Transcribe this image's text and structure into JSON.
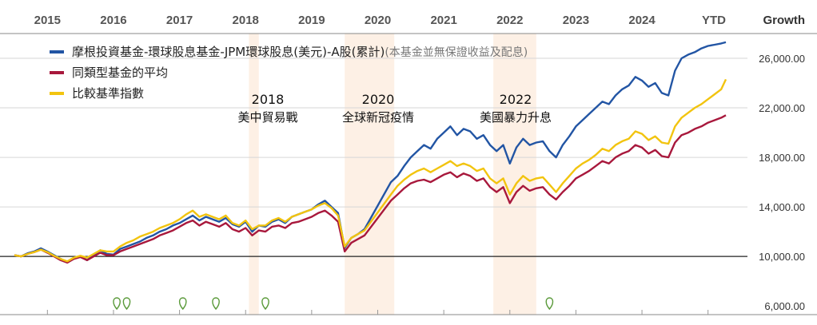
{
  "chart_data": {
    "type": "line",
    "x_ticks": [
      "2015",
      "2016",
      "2017",
      "2018",
      "2019",
      "2020",
      "2021",
      "2022",
      "2023",
      "2024",
      "YTD"
    ],
    "y_axis_title": "Growth",
    "y_ticks": [
      "26,000.00",
      "22,000.00",
      "18,000.00",
      "14,000.00",
      "10,000.00",
      "6,000.00"
    ],
    "y_tick_values": [
      26000,
      22000,
      18000,
      14000,
      10000,
      6000
    ],
    "ylim": [
      5300,
      28000
    ],
    "xlim": [
      2014.5,
      2025.3
    ],
    "baseline": 10000,
    "grid": "horizontal",
    "legend_position": "top-left",
    "legend_note": "(本基金並無保證收益及配息)",
    "series": [
      {
        "name": "摩根投資基金-環球股息基金-JPM環球股息(美元)-A股(累計)",
        "color": "#2255a4",
        "x": [
          2014.5,
          2014.6,
          2014.7,
          2014.8,
          2014.9,
          2015.0,
          2015.1,
          2015.2,
          2015.3,
          2015.4,
          2015.5,
          2015.6,
          2015.7,
          2015.8,
          2015.9,
          2016.0,
          2016.1,
          2016.2,
          2016.3,
          2016.4,
          2016.5,
          2016.6,
          2016.7,
          2016.8,
          2016.9,
          2017.0,
          2017.1,
          2017.2,
          2017.3,
          2017.4,
          2017.5,
          2017.6,
          2017.7,
          2017.8,
          2017.9,
          2018.0,
          2018.1,
          2018.2,
          2018.3,
          2018.4,
          2018.5,
          2018.6,
          2018.7,
          2018.8,
          2018.9,
          2019.0,
          2019.1,
          2019.2,
          2019.3,
          2019.4,
          2019.5,
          2019.6,
          2019.7,
          2019.8,
          2019.9,
          2020.0,
          2020.1,
          2020.2,
          2020.3,
          2020.4,
          2020.5,
          2020.6,
          2020.7,
          2020.8,
          2020.9,
          2021.0,
          2021.1,
          2021.2,
          2021.3,
          2021.4,
          2021.5,
          2021.6,
          2021.7,
          2021.8,
          2021.9,
          2022.0,
          2022.1,
          2022.2,
          2022.3,
          2022.4,
          2022.5,
          2022.6,
          2022.7,
          2022.8,
          2022.9,
          2023.0,
          2023.1,
          2023.2,
          2023.3,
          2023.4,
          2023.5,
          2023.6,
          2023.7,
          2023.8,
          2023.9,
          2024.0,
          2024.1,
          2024.2,
          2024.3,
          2024.4,
          2024.5,
          2024.6,
          2024.7,
          2024.8,
          2024.9,
          2025.0,
          2025.1,
          2025.2,
          2025.27
        ],
        "values": [
          10100,
          10000,
          10250,
          10400,
          10650,
          10400,
          10100,
          9800,
          9550,
          9900,
          10000,
          9700,
          10100,
          10500,
          10200,
          10150,
          10600,
          10800,
          11000,
          11200,
          11500,
          11700,
          12000,
          12200,
          12500,
          12700,
          13000,
          13300,
          12900,
          13200,
          13000,
          12800,
          13100,
          12600,
          12400,
          12800,
          12000,
          12500,
          12400,
          12800,
          13000,
          12700,
          13200,
          13400,
          13600,
          13800,
          14200,
          14500,
          14000,
          13500,
          10700,
          11500,
          11800,
          12200,
          12400,
          13200,
          14800,
          16000,
          16500,
          17300,
          18000,
          18500,
          19000,
          18700,
          19500,
          20000,
          20500,
          19800,
          20300,
          20100,
          19500,
          19800,
          19000,
          18500,
          19000,
          17500,
          18800,
          19500,
          19000,
          19200,
          19300,
          18500,
          18000,
          19000,
          19700,
          20500,
          21000,
          21500,
          22000,
          22500,
          22300,
          23000,
          23500,
          23800,
          24500,
          24200,
          23700,
          24000,
          23200,
          23000,
          25000,
          26000,
          26300,
          26500,
          26800,
          27000,
          27100,
          27200,
          27300
        ],
        "gap": {
          "from": 2019.85,
          "to": 2020.15
        }
      },
      {
        "name": "同類型基金的平均",
        "color": "#a8183c",
        "x": [
          2014.5,
          2014.6,
          2014.7,
          2014.8,
          2014.9,
          2015.0,
          2015.1,
          2015.2,
          2015.3,
          2015.4,
          2015.5,
          2015.6,
          2015.7,
          2015.8,
          2015.9,
          2016.0,
          2016.1,
          2016.2,
          2016.3,
          2016.4,
          2016.5,
          2016.6,
          2016.7,
          2016.8,
          2016.9,
          2017.0,
          2017.1,
          2017.2,
          2017.3,
          2017.4,
          2017.5,
          2017.6,
          2017.7,
          2017.8,
          2017.9,
          2018.0,
          2018.1,
          2018.2,
          2018.3,
          2018.4,
          2018.5,
          2018.6,
          2018.7,
          2018.8,
          2018.9,
          2019.0,
          2019.1,
          2019.2,
          2019.3,
          2019.4,
          2019.5,
          2019.6,
          2019.7,
          2019.8,
          2019.9,
          2020.0,
          2020.1,
          2020.2,
          2020.3,
          2020.4,
          2020.5,
          2020.6,
          2020.7,
          2020.8,
          2020.9,
          2021.0,
          2021.1,
          2021.2,
          2021.3,
          2021.4,
          2021.5,
          2021.6,
          2021.7,
          2021.8,
          2021.9,
          2022.0,
          2022.1,
          2022.2,
          2022.3,
          2022.4,
          2022.5,
          2022.6,
          2022.7,
          2022.8,
          2022.9,
          2023.0,
          2023.1,
          2023.2,
          2023.3,
          2023.4,
          2023.5,
          2023.6,
          2023.7,
          2023.8,
          2023.9,
          2024.0,
          2024.1,
          2024.2,
          2024.3,
          2024.4,
          2024.5,
          2024.6,
          2024.7,
          2024.8,
          2024.9,
          2025.0,
          2025.1,
          2025.2,
          2025.27
        ],
        "values": [
          10100,
          10000,
          10200,
          10350,
          10550,
          10300,
          10000,
          9700,
          9500,
          9800,
          9950,
          9700,
          10000,
          10300,
          10100,
          10100,
          10400,
          10600,
          10800,
          11000,
          11200,
          11400,
          11700,
          11900,
          12100,
          12400,
          12700,
          12900,
          12500,
          12800,
          12600,
          12400,
          12700,
          12200,
          12000,
          12300,
          11700,
          12100,
          12000,
          12400,
          12500,
          12300,
          12700,
          12800,
          13000,
          13200,
          13500,
          13700,
          13300,
          12800,
          10400,
          11100,
          11400,
          11700,
          11900,
          12600,
          13600,
          14500,
          15000,
          15500,
          15900,
          16100,
          16200,
          16000,
          16300,
          16600,
          16800,
          16400,
          16700,
          16500,
          16100,
          16300,
          15600,
          15200,
          15600,
          14300,
          15200,
          15700,
          15300,
          15500,
          15600,
          15000,
          14600,
          15200,
          15700,
          16300,
          16600,
          16900,
          17300,
          17700,
          17500,
          18000,
          18300,
          18500,
          19000,
          18800,
          18300,
          18600,
          18100,
          18000,
          19200,
          19800,
          20000,
          20300,
          20500,
          20800,
          21000,
          21200,
          21400
        ],
        "gap": {
          "from": 2019.85,
          "to": 2020.15
        }
      },
      {
        "name": "比較基準指數",
        "color": "#f2c40f",
        "x": [
          2014.5,
          2014.6,
          2014.7,
          2014.8,
          2014.9,
          2015.0,
          2015.1,
          2015.2,
          2015.3,
          2015.4,
          2015.5,
          2015.6,
          2015.7,
          2015.8,
          2015.9,
          2016.0,
          2016.1,
          2016.2,
          2016.3,
          2016.4,
          2016.5,
          2016.6,
          2016.7,
          2016.8,
          2016.9,
          2017.0,
          2017.1,
          2017.2,
          2017.3,
          2017.4,
          2017.5,
          2017.6,
          2017.7,
          2017.8,
          2017.9,
          2018.0,
          2018.1,
          2018.2,
          2018.3,
          2018.4,
          2018.5,
          2018.6,
          2018.7,
          2018.8,
          2018.9,
          2019.0,
          2019.1,
          2019.2,
          2019.3,
          2019.4,
          2019.5,
          2019.6,
          2019.7,
          2019.8,
          2019.9,
          2020.0,
          2020.1,
          2020.2,
          2020.3,
          2020.4,
          2020.5,
          2020.6,
          2020.7,
          2020.8,
          2020.9,
          2021.0,
          2021.1,
          2021.2,
          2021.3,
          2021.4,
          2021.5,
          2021.6,
          2021.7,
          2021.8,
          2021.9,
          2022.0,
          2022.1,
          2022.2,
          2022.3,
          2022.4,
          2022.5,
          2022.6,
          2022.7,
          2022.8,
          2022.9,
          2023.0,
          2023.1,
          2023.2,
          2023.3,
          2023.4,
          2023.5,
          2023.6,
          2023.7,
          2023.8,
          2023.9,
          2024.0,
          2024.1,
          2024.2,
          2024.3,
          2024.4,
          2024.5,
          2024.6,
          2024.7,
          2024.8,
          2024.9,
          2025.0,
          2025.1,
          2025.2,
          2025.27
        ],
        "values": [
          10100,
          10000,
          10200,
          10350,
          10550,
          10350,
          10050,
          9800,
          9600,
          9900,
          10050,
          9900,
          10200,
          10500,
          10400,
          10400,
          10800,
          11100,
          11300,
          11600,
          11800,
          12000,
          12300,
          12500,
          12700,
          13000,
          13400,
          13700,
          13200,
          13400,
          13200,
          13000,
          13300,
          12700,
          12500,
          12900,
          12200,
          12500,
          12500,
          12900,
          13100,
          12800,
          13200,
          13400,
          13600,
          13800,
          14100,
          14300,
          13900,
          13300,
          10800,
          11500,
          11800,
          12100,
          12300,
          13200,
          14000,
          15000,
          15700,
          16200,
          16600,
          16900,
          17100,
          16800,
          17100,
          17400,
          17700,
          17300,
          17500,
          17300,
          16900,
          17100,
          16300,
          15900,
          16300,
          15000,
          15900,
          16500,
          16100,
          16300,
          16400,
          15800,
          15200,
          15900,
          16500,
          17100,
          17500,
          17800,
          18200,
          18700,
          18500,
          19000,
          19300,
          19500,
          20100,
          19900,
          19400,
          19700,
          19200,
          19100,
          20500,
          21200,
          21600,
          22000,
          22300,
          22700,
          23100,
          23500,
          24300
        ],
        "gap": {
          "from": 2019.85,
          "to": 2020.15
        }
      }
    ],
    "events": [
      {
        "year": "2018",
        "label": "美中貿易戰",
        "from": 2018.05,
        "to": 2018.2
      },
      {
        "year": "2020",
        "label": "全球新冠疫情",
        "from": 2019.5,
        "to": 2020.25
      },
      {
        "year": "2022",
        "label": "美國暴力升息",
        "from": 2021.75,
        "to": 2022.4
      }
    ],
    "dividend_markers_x": [
      2016.05,
      2016.2,
      2017.05,
      2017.55,
      2018.3,
      2022.6
    ]
  }
}
